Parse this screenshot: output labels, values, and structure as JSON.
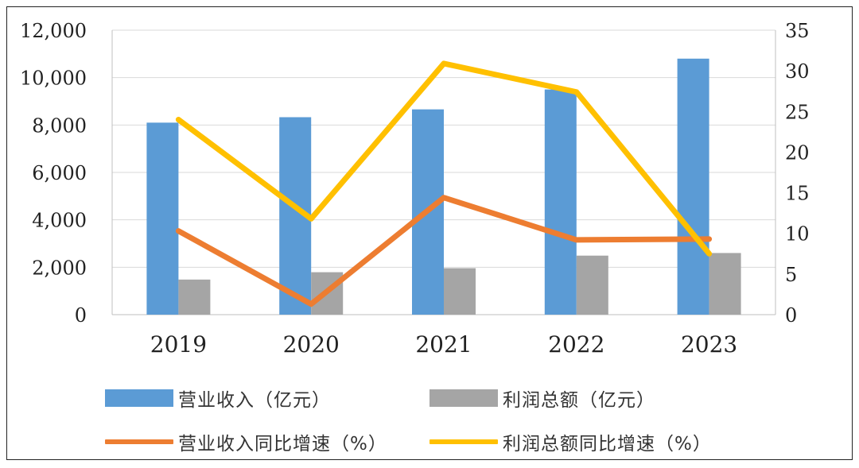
{
  "chart_data": {
    "type": "bar+line",
    "categories": [
      "2019",
      "2020",
      "2021",
      "2022",
      "2023"
    ],
    "y_left": {
      "ylim": [
        0,
        12000
      ],
      "ticks": [
        "0",
        "2,000",
        "4,000",
        "6,000",
        "8,000",
        "10,000",
        "12,000"
      ]
    },
    "y_right": {
      "ylim": [
        0,
        35
      ],
      "ticks": [
        "0",
        "5",
        "10",
        "15",
        "20",
        "25",
        "30",
        "35"
      ]
    },
    "grid": true,
    "legend_position": "bottom",
    "series": [
      {
        "name": "营业收入（亿元）",
        "kind": "bar",
        "axis": "left",
        "color": "#5b9bd5",
        "values": [
          8100,
          8330,
          8660,
          9500,
          10800
        ]
      },
      {
        "name": "利润总额（亿元）",
        "kind": "bar",
        "axis": "left",
        "color": "#a5a5a5",
        "values": [
          1480,
          1790,
          1960,
          2490,
          2600
        ]
      },
      {
        "name": "营业收入同比增速（%）",
        "kind": "line",
        "axis": "right",
        "color": "#ed7d31",
        "values": [
          10.3,
          1.3,
          14.4,
          9.2,
          9.3
        ]
      },
      {
        "name": "利润总额同比增速（%）",
        "kind": "line",
        "axis": "right",
        "color": "#ffc000",
        "values": [
          24.0,
          11.8,
          30.9,
          27.4,
          7.5
        ]
      }
    ]
  }
}
